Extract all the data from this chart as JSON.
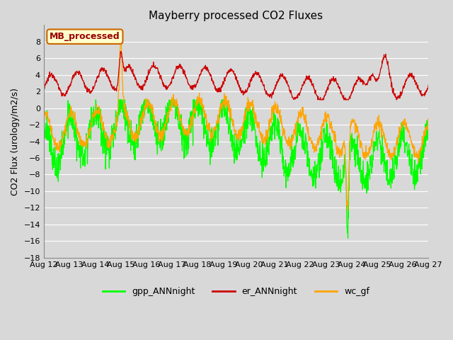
{
  "title": "Mayberry processed CO2 Fluxes",
  "ylabel": "CO2 Flux (urology/m2/s)",
  "n_days": 15,
  "ylim": [
    -18,
    10
  ],
  "yticks": [
    -18,
    -16,
    -14,
    -12,
    -10,
    -8,
    -6,
    -4,
    -2,
    0,
    2,
    4,
    6,
    8
  ],
  "xtick_labels": [
    "Aug 12",
    "Aug 13",
    "Aug 14",
    "Aug 15",
    "Aug 16",
    "Aug 17",
    "Aug 18",
    "Aug 19",
    "Aug 20",
    "Aug 21",
    "Aug 22",
    "Aug 23",
    "Aug 24",
    "Aug 25",
    "Aug 26",
    "Aug 27"
  ],
  "color_gpp": "#00FF00",
  "color_er": "#CC0000",
  "color_wc": "#FFA500",
  "legend_label_gpp": "gpp_ANNnight",
  "legend_label_er": "er_ANNnight",
  "legend_label_wc": "wc_gf",
  "inset_label": "MB_processed",
  "fig_bg_color": "#D8D8D8",
  "axis_bg_color": "#D8D8D8",
  "grid_color": "#FFFFFF",
  "title_fontsize": 11,
  "tick_fontsize": 8,
  "ylabel_fontsize": 9,
  "line_width": 0.9
}
